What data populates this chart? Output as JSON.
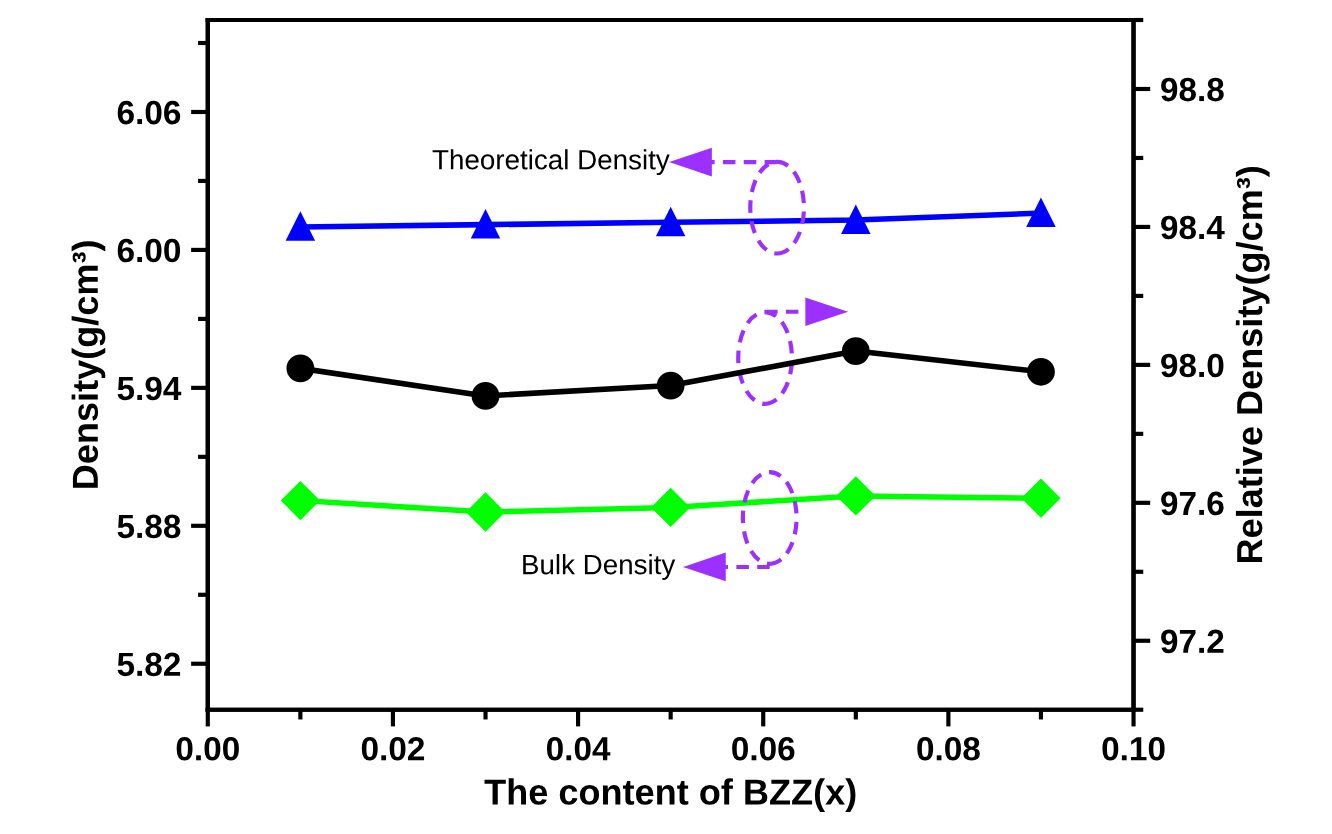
{
  "chart_data": {
    "type": "line",
    "xlabel": "The content of BZZ(x)",
    "ylabel": "Density(g/cm³)",
    "y2label": "Relative Density(g/cm³)",
    "x": [
      0.01,
      0.03,
      0.05,
      0.07,
      0.09
    ],
    "series": [
      {
        "name": "Theoretical Density",
        "color": "#0000ff",
        "marker": "triangle",
        "values": [
          6.01,
          6.011,
          6.012,
          6.013,
          6.016
        ]
      },
      {
        "color": "#000000",
        "marker": "circle",
        "axis": "y2",
        "values": [
          97.99,
          97.91,
          97.94,
          98.04,
          97.98
        ]
      },
      {
        "name": "Bulk Density",
        "color": "#00ff00",
        "marker": "diamond",
        "values": [
          5.891,
          5.886,
          5.888,
          5.893,
          5.892
        ]
      }
    ],
    "xlim": [
      0.0,
      0.1
    ],
    "xticks": [
      {
        "value": 0.0,
        "label": "0.00"
      },
      {
        "value": 0.02,
        "label": "0.02"
      },
      {
        "value": 0.04,
        "label": "0.04"
      },
      {
        "value": 0.06,
        "label": "0.06"
      },
      {
        "value": 0.08,
        "label": "0.08"
      },
      {
        "value": 0.1,
        "label": "0.10"
      }
    ],
    "ylim": [
      5.8,
      6.1
    ],
    "yticks": [
      5.82,
      5.88,
      5.94,
      {
        "value": 6.0,
        "label": "6.00"
      },
      6.06
    ],
    "y2lim": [
      97.0,
      99.0
    ],
    "y2ticks": [
      97.2,
      97.6,
      {
        "value": 98.0,
        "label": "98.0"
      },
      98.4,
      98.8
    ],
    "grid": false,
    "legend": false,
    "line_style": "solid"
  }
}
